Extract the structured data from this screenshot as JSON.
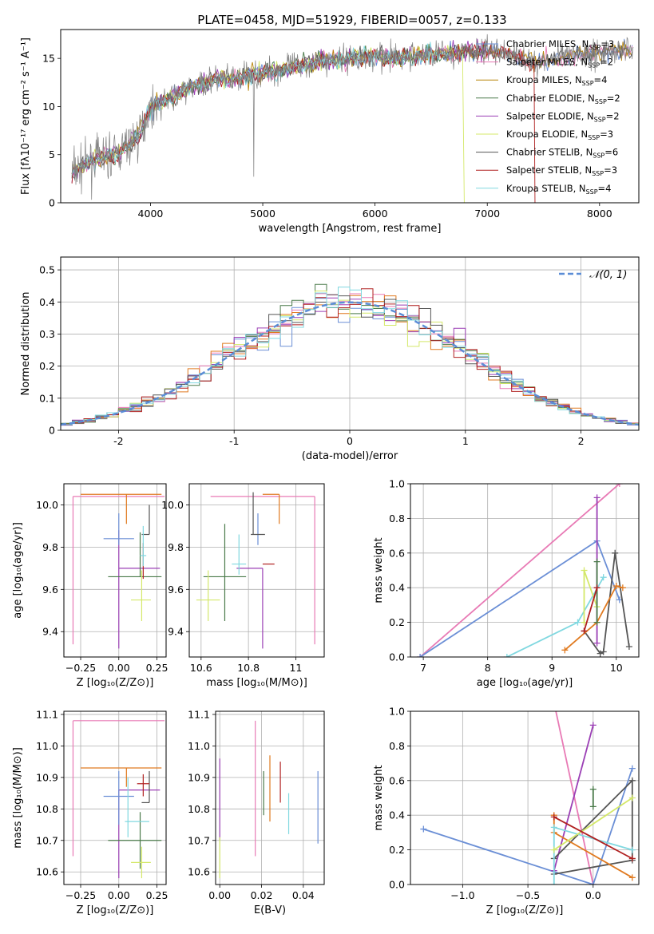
{
  "figure": {
    "title": "PLATE=0458, MJD=51929, FIBERID=0057, z=0.133"
  },
  "chart_data": [
    {
      "id": "spectrum",
      "type": "line",
      "xlabel": "wavelength [Angstrom, rest frame]",
      "ylabel": "Flux [fλ10⁻¹⁷ erg cm⁻² s⁻¹ A⁻¹]",
      "xlim": [
        3200,
        8350
      ],
      "ylim": [
        0,
        18
      ],
      "xticks": [
        4000,
        5000,
        6000,
        7000,
        8000
      ],
      "yticks": [
        0,
        5,
        10,
        15
      ],
      "grid": false,
      "legend_position": "top-right",
      "data_anchor_x": [
        3300,
        3500,
        3700,
        3900,
        4000,
        4200,
        4400,
        4600,
        4800,
        5000,
        5200,
        5400,
        5600,
        5800,
        6000,
        6200,
        6400,
        6600,
        6800,
        7000,
        7200,
        7400,
        7600,
        7800,
        8000,
        8300
      ],
      "data_anchor_y": [
        3.2,
        4.5,
        5.0,
        7.0,
        10.0,
        11.0,
        12.2,
        12.8,
        13.0,
        13.5,
        14.0,
        14.5,
        14.8,
        15.0,
        15.2,
        15.0,
        15.3,
        15.5,
        15.6,
        15.8,
        15.5,
        14.5,
        15.0,
        15.4,
        15.6,
        16.0
      ],
      "series": [
        {
          "name": "Chabrier MILES, N",
          "sub": "SSP",
          "suffix": "=3",
          "color": "#6b8fd6"
        },
        {
          "name": "Salpeter MILES, N",
          "sub": "SSP",
          "suffix": "=2",
          "color": "#e87ab5"
        },
        {
          "name": "Kroupa MILES, N",
          "sub": "SSP",
          "suffix": "=4",
          "color": "#b8860b"
        },
        {
          "name": "Chabrier ELODIE, N",
          "sub": "SSP",
          "suffix": "=2",
          "color": "#4a7a4a"
        },
        {
          "name": "Salpeter ELODIE, N",
          "sub": "SSP",
          "suffix": "=2",
          "color": "#9b3fb5"
        },
        {
          "name": "Kroupa ELODIE, N",
          "sub": "SSP",
          "suffix": "=3",
          "color": "#d4e86a"
        },
        {
          "name": "Chabrier STELIB, N",
          "sub": "SSP",
          "suffix": "=6",
          "color": "#555555"
        },
        {
          "name": "Salpeter STELIB, N",
          "sub": "SSP",
          "suffix": "=3",
          "color": "#b02020"
        },
        {
          "name": "Kroupa STELIB, N",
          "sub": "SSP",
          "suffix": "=4",
          "color": "#80d8e0"
        }
      ],
      "data_color": "#808080"
    },
    {
      "id": "residuals",
      "type": "histogram",
      "xlabel": "(data-model)/error",
      "ylabel": "Normed distribution",
      "xlim": [
        -2.5,
        2.5
      ],
      "ylim": [
        0,
        0.54
      ],
      "xticks": [
        -2,
        -1,
        0,
        1,
        2
      ],
      "yticks": [
        0.0,
        0.1,
        0.2,
        0.3,
        0.4,
        0.5
      ],
      "grid": true,
      "legend_position": "top-right",
      "gaussian_label": "𝒩(0, 1)",
      "gaussian_color": "#5b8dd6",
      "bin_width": 0.1,
      "colors": [
        "#6b8fd6",
        "#e87ab5",
        "#e07a20",
        "#4a7a4a",
        "#9b3fb5",
        "#d4e86a",
        "#555555",
        "#b02020",
        "#80d8e0"
      ]
    },
    {
      "id": "z-age",
      "type": "scatter",
      "xlabel": "Z [log₁₀(Z/Z⊙)]",
      "ylabel": "age  [log₁₀(age/yr)]",
      "xlim": [
        -0.36,
        0.31
      ],
      "ylim": [
        9.28,
        10.1
      ],
      "xticks": [
        -0.25,
        0.0,
        0.25
      ],
      "xticklabels": [
        "−0.25",
        "0.00",
        "0.25"
      ],
      "yticks": [
        9.4,
        9.6,
        9.8,
        10.0
      ],
      "grid": true,
      "points": [
        {
          "color": "#e87ab5",
          "x": -0.3,
          "xe": [
            0.0,
            0.6
          ],
          "y": 10.04,
          "ye": [
            0.7,
            0.0
          ]
        },
        {
          "color": "#e07a20",
          "x": 0.05,
          "xe": [
            0.3,
            0.23
          ],
          "y": 10.05,
          "ye": [
            0.14,
            0.0
          ]
        },
        {
          "color": "#9b3fb5",
          "x": 0.0,
          "xe": [
            0.0,
            0.27
          ],
          "y": 9.7,
          "ye": [
            0.38,
            0.18
          ]
        },
        {
          "color": "#555555",
          "x": 0.2,
          "xe": [
            0.05,
            0.0
          ],
          "y": 9.86,
          "ye": [
            0.0,
            0.14
          ]
        },
        {
          "color": "#4a7a4a",
          "x": 0.14,
          "xe": [
            0.21,
            0.14
          ],
          "y": 9.66,
          "ye": [
            0.0,
            0.21
          ]
        },
        {
          "color": "#6b8fd6",
          "x": 0.0,
          "xe": [
            0.1,
            0.1
          ],
          "y": 9.84,
          "ye": [
            0.03,
            0.12
          ]
        },
        {
          "color": "#b02020",
          "x": 0.16,
          "xe": [
            0.0,
            0.0
          ],
          "y": 9.72,
          "ye": [
            0.07,
            0.1
          ]
        },
        {
          "color": "#d4e86a",
          "x": 0.15,
          "xe": [
            0.07,
            0.06
          ],
          "y": 9.55,
          "ye": [
            0.1,
            0.14
          ]
        },
        {
          "color": "#80d8e0",
          "x": 0.16,
          "xe": [
            0.02,
            0.02
          ],
          "y": 9.76,
          "ye": [
            0.05,
            0.14
          ]
        }
      ]
    },
    {
      "id": "mass-age",
      "type": "scatter",
      "xlabel": "mass [log₁₀(M/M⊙)]",
      "ylabel": "",
      "xlim": [
        10.55,
        11.12
      ],
      "ylim": [
        9.28,
        10.1
      ],
      "xticks": [
        10.6,
        10.8,
        11.0
      ],
      "yticks": [
        9.4,
        9.6,
        9.8,
        10.0
      ],
      "grid": true,
      "points": [
        {
          "color": "#e87ab5",
          "x": 11.08,
          "xe": [
            0.44,
            0.0
          ],
          "y": 10.04,
          "ye": [
            0.7,
            0.0
          ]
        },
        {
          "color": "#e07a20",
          "x": 10.93,
          "xe": [
            0.07,
            0.0
          ],
          "y": 10.05,
          "ye": [
            0.14,
            0.0
          ]
        },
        {
          "color": "#9b3fb5",
          "x": 10.86,
          "xe": [
            0.11,
            0.0
          ],
          "y": 9.7,
          "ye": [
            0.38,
            0.0
          ]
        },
        {
          "color": "#555555",
          "x": 10.82,
          "xe": [
            0.0,
            0.0
          ],
          "y": 9.86,
          "ye": [
            0.0,
            0.2
          ]
        },
        {
          "color": "#4a7a4a",
          "x": 10.7,
          "xe": [
            0.09,
            0.09
          ],
          "y": 9.66,
          "ye": [
            0.21,
            0.25
          ]
        },
        {
          "color": "#6b8fd6",
          "x": 10.84,
          "xe": [
            0.0,
            0.0
          ],
          "y": 9.84,
          "ye": [
            0.03,
            0.12
          ]
        },
        {
          "color": "#b02020",
          "x": 10.88,
          "xe": [
            0.02,
            0.03
          ],
          "y": 9.72,
          "ye": [
            0.0,
            0.0
          ]
        },
        {
          "color": "#d4e86a",
          "x": 10.63,
          "xe": [
            0.05,
            0.05
          ],
          "y": 9.55,
          "ye": [
            0.1,
            0.14
          ]
        },
        {
          "color": "#80d8e0",
          "x": 10.76,
          "xe": [
            0.03,
            0.03
          ],
          "y": 9.72,
          "ye": [
            0.05,
            0.14
          ]
        },
        {
          "color": "#555555",
          "x": 10.87,
          "xe": [
            0.06,
            0.0
          ],
          "y": 9.86,
          "ye": [
            0.0,
            0.0
          ]
        }
      ]
    },
    {
      "id": "age-weight",
      "type": "line",
      "xlabel": "age  [log₁₀(age/yr)]",
      "ylabel": "mass weight",
      "xlim": [
        6.8,
        10.35
      ],
      "ylim": [
        0,
        1
      ],
      "xticks": [
        7,
        8,
        9,
        10
      ],
      "yticks": [
        0.0,
        0.2,
        0.4,
        0.6,
        0.8,
        1.0
      ],
      "grid": true,
      "series": [
        {
          "color": "#e87ab5",
          "x": [
            6.95,
            10.05
          ],
          "y": [
            0.0,
            1.0
          ]
        },
        {
          "color": "#6b8fd6",
          "x": [
            6.95,
            9.7,
            10.05
          ],
          "y": [
            0.0,
            0.67,
            0.33
          ]
        },
        {
          "color": "#9b3fb5",
          "x": [
            9.7,
            9.7
          ],
          "y": [
            0.08,
            0.92
          ]
        },
        {
          "color": "#555555",
          "x": [
            9.5,
            9.75,
            9.8,
            9.98,
            10.2
          ],
          "y": [
            0.15,
            0.02,
            0.03,
            0.6,
            0.06
          ]
        },
        {
          "color": "#e07a20",
          "x": [
            9.2,
            9.7,
            10.0,
            10.1
          ],
          "y": [
            0.04,
            0.2,
            0.41,
            0.4
          ]
        },
        {
          "color": "#80d8e0",
          "x": [
            8.3,
            9.4,
            9.8
          ],
          "y": [
            0.0,
            0.2,
            0.46
          ]
        },
        {
          "color": "#d4e86a",
          "x": [
            9.5,
            9.5,
            9.7
          ],
          "y": [
            0.2,
            0.5,
            0.29
          ]
        },
        {
          "color": "#4a7a4a",
          "x": [
            9.7,
            9.7
          ],
          "y": [
            0.2,
            0.55
          ]
        },
        {
          "color": "#b02020",
          "x": [
            9.5,
            9.7
          ],
          "y": [
            0.15,
            0.4
          ]
        }
      ]
    },
    {
      "id": "z-mass",
      "type": "scatter",
      "xlabel": "Z [log₁₀(Z/Z⊙)]",
      "ylabel": "mass [log₁₀(M/M⊙)]",
      "xlim": [
        -0.36,
        0.31
      ],
      "ylim": [
        10.56,
        11.11
      ],
      "xticks": [
        -0.25,
        0.0,
        0.25
      ],
      "xticklabels": [
        "−0.25",
        "0.00",
        "0.25"
      ],
      "yticks": [
        10.6,
        10.7,
        10.8,
        10.9,
        11.0,
        11.1
      ],
      "grid": true,
      "points": [
        {
          "color": "#e87ab5",
          "x": -0.3,
          "xe": [
            0.0,
            0.6
          ],
          "y": 11.08,
          "ye": [
            0.43,
            0.0
          ]
        },
        {
          "color": "#e07a20",
          "x": 0.05,
          "xe": [
            0.3,
            0.23
          ],
          "y": 10.93,
          "ye": [
            0.06,
            0.0
          ]
        },
        {
          "color": "#9b3fb5",
          "x": 0.0,
          "xe": [
            0.0,
            0.27
          ],
          "y": 10.86,
          "ye": [
            0.28,
            0.0
          ]
        },
        {
          "color": "#555555",
          "x": 0.2,
          "xe": [
            0.05,
            0.0
          ],
          "y": 10.82,
          "ye": [
            0.0,
            0.1
          ]
        },
        {
          "color": "#4a7a4a",
          "x": 0.14,
          "xe": [
            0.21,
            0.14
          ],
          "y": 10.7,
          "ye": [
            0.09,
            0.09
          ]
        },
        {
          "color": "#6b8fd6",
          "x": 0.0,
          "xe": [
            0.1,
            0.1
          ],
          "y": 10.84,
          "ye": [
            0.09,
            0.08
          ]
        },
        {
          "color": "#b02020",
          "x": 0.16,
          "xe": [
            0.04,
            0.04
          ],
          "y": 10.88,
          "ye": [
            0.04,
            0.03
          ]
        },
        {
          "color": "#d4e86a",
          "x": 0.15,
          "xe": [
            0.07,
            0.06
          ],
          "y": 10.63,
          "ye": [
            0.05,
            0.05
          ]
        },
        {
          "color": "#80d8e0",
          "x": 0.06,
          "xe": [
            0.02,
            0.14
          ],
          "y": 10.76,
          "ye": [
            0.05,
            0.14
          ]
        }
      ]
    },
    {
      "id": "ebv-mass",
      "type": "errorbar",
      "xlabel": "E(B-V)",
      "ylabel": "",
      "xlim": [
        -0.002,
        0.05
      ],
      "ylim": [
        10.56,
        11.11
      ],
      "xticks": [
        0.0,
        0.02,
        0.04
      ],
      "xticklabels": [
        "0.00",
        "0.02",
        "0.04"
      ],
      "yticks": [
        10.6,
        10.7,
        10.8,
        10.9,
        11.0,
        11.1
      ],
      "grid": true,
      "bars": [
        {
          "color": "#e87ab5",
          "x": 0.017,
          "y0": 10.65,
          "y1": 11.08
        },
        {
          "color": "#9b3fb5",
          "x": 0.0,
          "y0": 10.7,
          "y1": 10.96
        },
        {
          "color": "#d4e86a",
          "x": 0.0,
          "y0": 10.58,
          "y1": 10.71
        },
        {
          "color": "#4a7a4a",
          "x": 0.021,
          "y0": 10.78,
          "y1": 10.92
        },
        {
          "color": "#e07a20",
          "x": 0.024,
          "y0": 10.76,
          "y1": 10.97
        },
        {
          "color": "#b02020",
          "x": 0.029,
          "y0": 10.82,
          "y1": 10.95
        },
        {
          "color": "#80d8e0",
          "x": 0.033,
          "y0": 10.72,
          "y1": 10.85
        },
        {
          "color": "#6b8fd6",
          "x": 0.047,
          "y0": 10.69,
          "y1": 10.92
        }
      ]
    },
    {
      "id": "z-weight",
      "type": "line",
      "xlabel": "Z [log₁₀(Z/Z⊙)]",
      "ylabel": "mass weight",
      "xlim": [
        -1.4,
        0.35
      ],
      "ylim": [
        0,
        1
      ],
      "xticks": [
        -1.0,
        -0.5,
        0.0
      ],
      "xticklabels": [
        "−1.0",
        "−0.5",
        "0.0"
      ],
      "yticks": [
        0.0,
        0.2,
        0.4,
        0.6,
        0.8,
        1.0
      ],
      "grid": true,
      "series": [
        {
          "color": "#e87ab5",
          "x": [
            -0.3,
            0.0
          ],
          "y": [
            1.05,
            0.0
          ]
        },
        {
          "color": "#6b8fd6",
          "x": [
            -1.3,
            0.0,
            0.3
          ],
          "y": [
            0.32,
            0.0,
            0.67
          ]
        },
        {
          "color": "#9b3fb5",
          "x": [
            -0.3,
            0.0
          ],
          "y": [
            0.08,
            0.92
          ]
        },
        {
          "color": "#555555",
          "x": [
            -0.3,
            0.3,
            0.3,
            -0.3
          ],
          "y": [
            0.06,
            0.14,
            0.6,
            0.15
          ]
        },
        {
          "color": "#e07a20",
          "x": [
            -0.3,
            -0.3,
            0.3
          ],
          "y": [
            0.4,
            0.3,
            0.04
          ]
        },
        {
          "color": "#80d8e0",
          "x": [
            -0.3,
            -0.3,
            0.3
          ],
          "y": [
            0.0,
            0.33,
            0.2
          ]
        },
        {
          "color": "#d4e86a",
          "x": [
            -0.3,
            0.3
          ],
          "y": [
            0.2,
            0.5
          ]
        },
        {
          "color": "#4a7a4a",
          "x": [
            0.0,
            0.0
          ],
          "y": [
            0.45,
            0.55
          ]
        },
        {
          "color": "#b02020",
          "x": [
            -0.3,
            0.3
          ],
          "y": [
            0.39,
            0.15
          ]
        }
      ]
    }
  ]
}
